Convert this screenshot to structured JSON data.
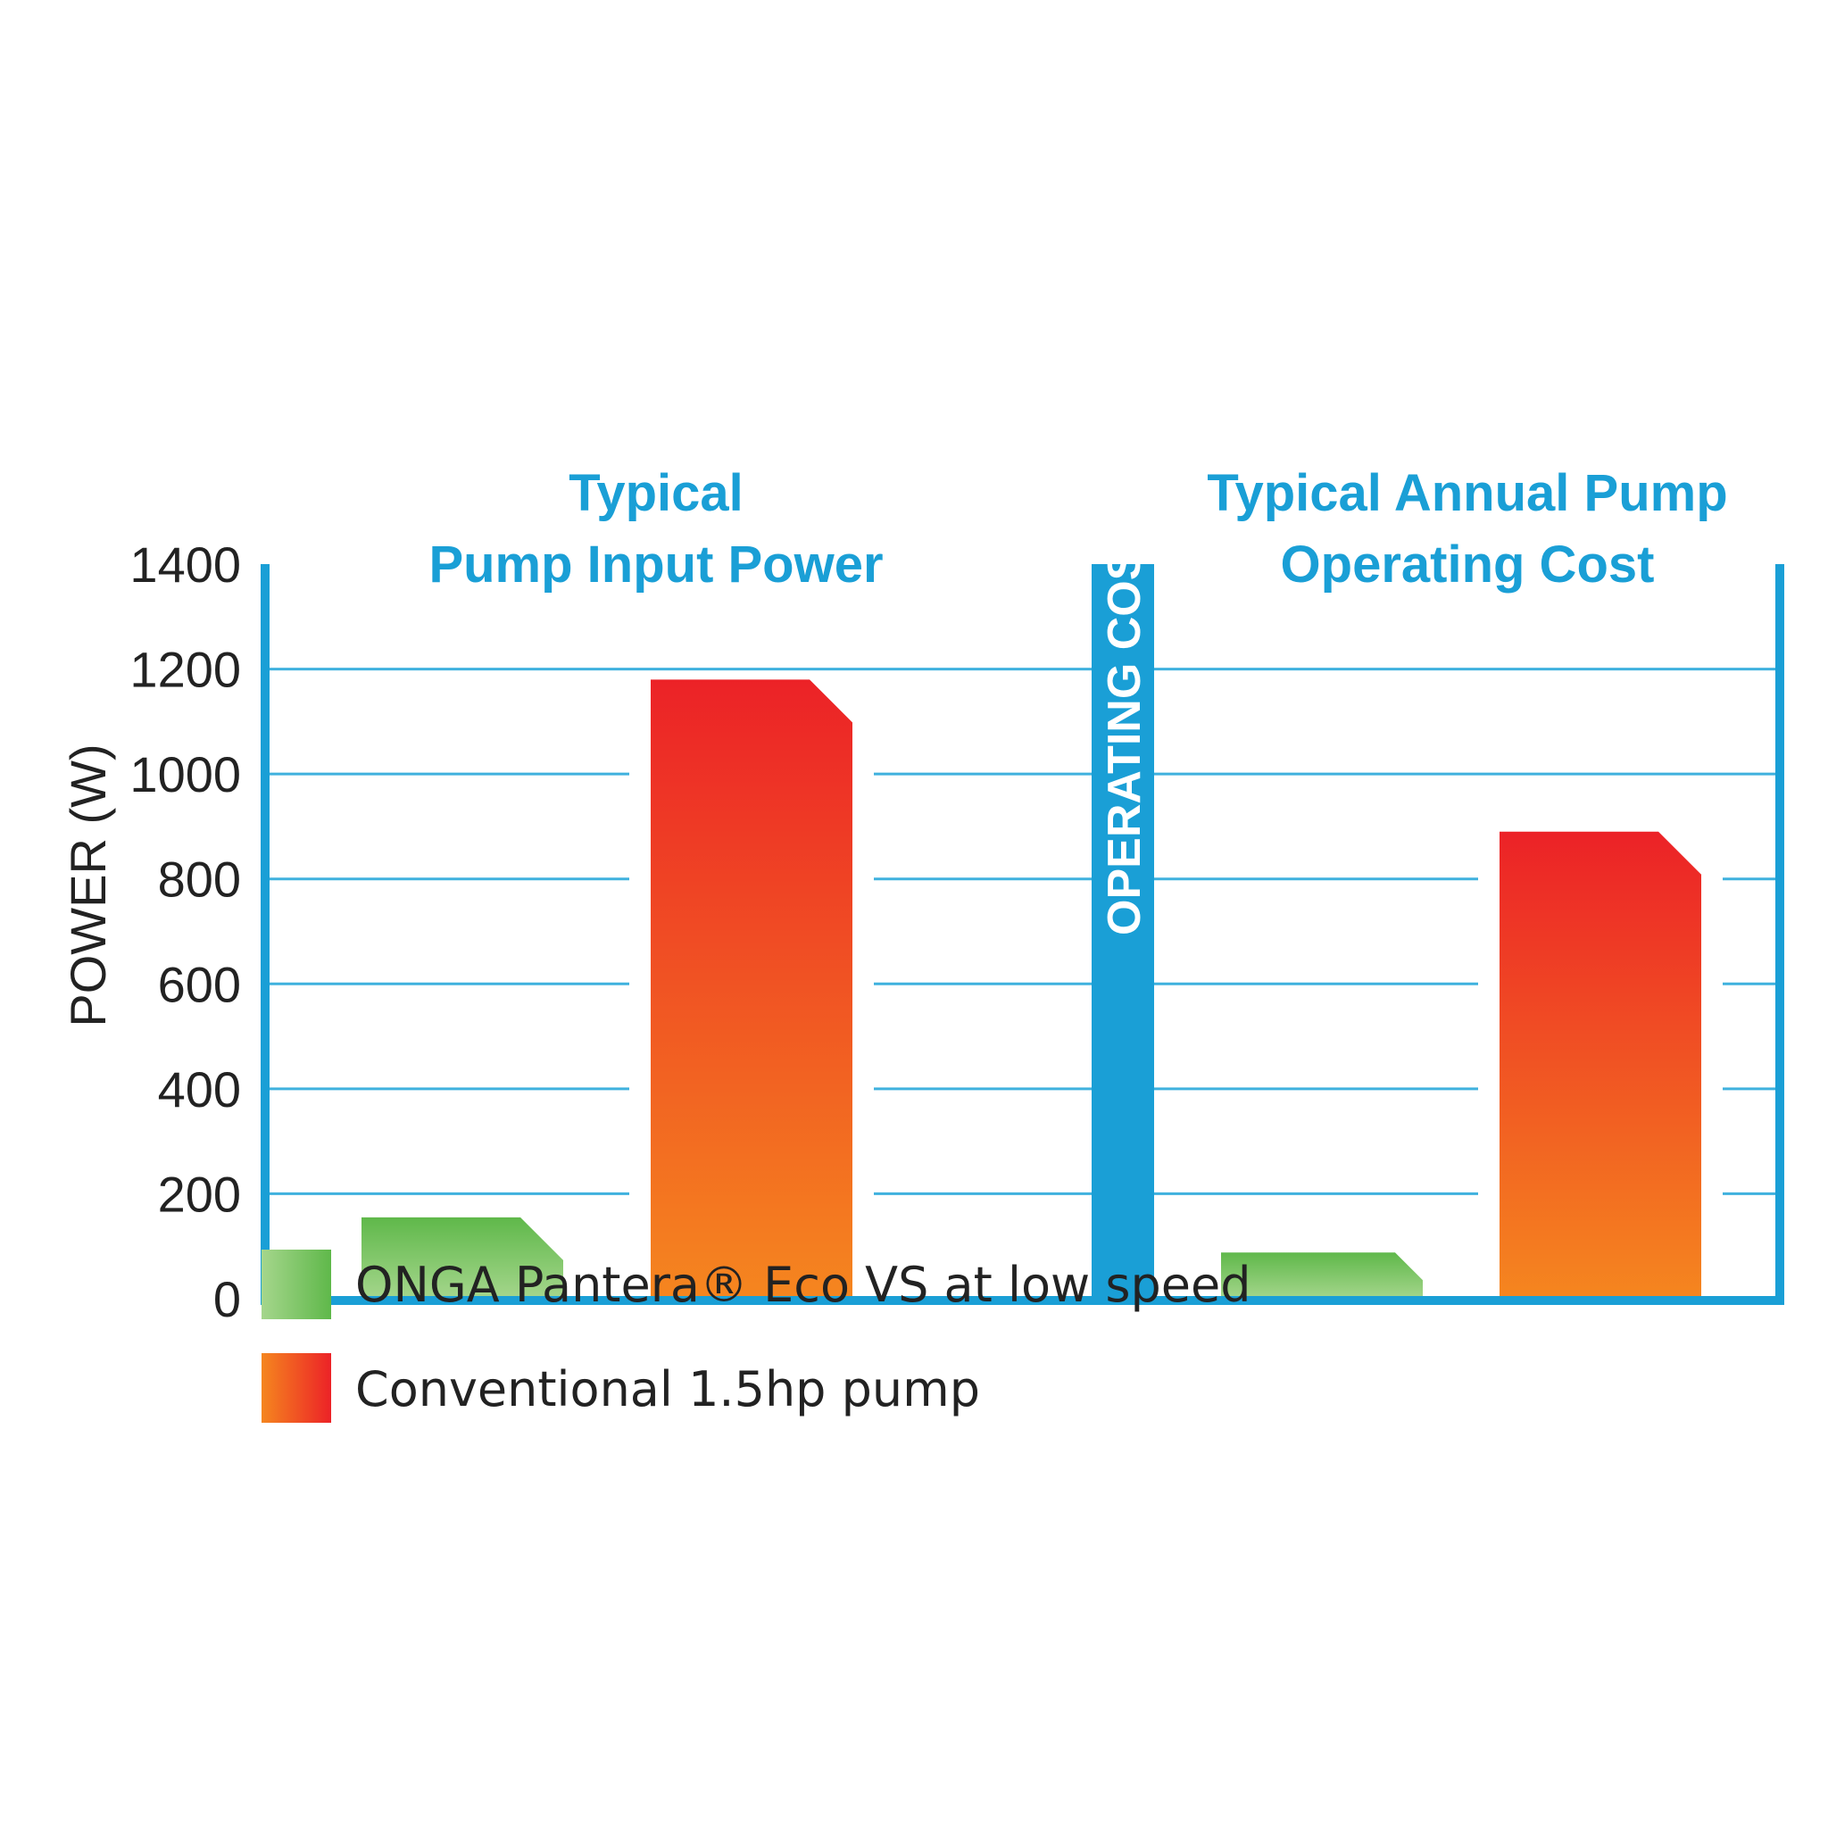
{
  "chart_data": [
    {
      "type": "bar",
      "title_lines": [
        "Typical",
        "Pump Input Power"
      ],
      "ylabel": "POWER (W)",
      "ylim": [
        0,
        1400
      ],
      "yticks": [
        "0",
        "200",
        "400",
        "600",
        "800",
        "1000",
        "1200",
        "1400"
      ],
      "grid": true,
      "series": [
        {
          "name": "ONGA Pantera® Eco VS at low speed",
          "values": [
            155
          ]
        },
        {
          "name": "Conventional 1.5hp pump",
          "values": [
            1180
          ]
        }
      ]
    },
    {
      "type": "bar",
      "title_lines": [
        "Typical Annual Pump",
        "Operating Cost"
      ],
      "ylabel": "OPERATING COST ($)",
      "ylim": [
        0,
        1400
      ],
      "grid": true,
      "series": [
        {
          "name": "ONGA Pantera® Eco VS at low speed",
          "values": [
            88
          ]
        },
        {
          "name": "Conventional 1.5hp pump",
          "values": [
            890
          ]
        }
      ]
    }
  ],
  "legend": {
    "placement": "bottom-left",
    "items": [
      {
        "label": "ONGA Pantera® Eco VS at low speed",
        "gradient": [
          "#a5d68c",
          "#5fb84a"
        ]
      },
      {
        "label": "Conventional 1.5hp pump",
        "gradient": [
          "#f5861f",
          "#ec2227"
        ]
      }
    ]
  },
  "colors": {
    "axis": "#1a9fd6",
    "grid": "#3fb1de",
    "title": "#1a9fd6",
    "green_top": "#5fb84a",
    "green_bottom": "#a5d68c",
    "red_top": "#ec2227",
    "orange_bottom": "#f5861f"
  }
}
